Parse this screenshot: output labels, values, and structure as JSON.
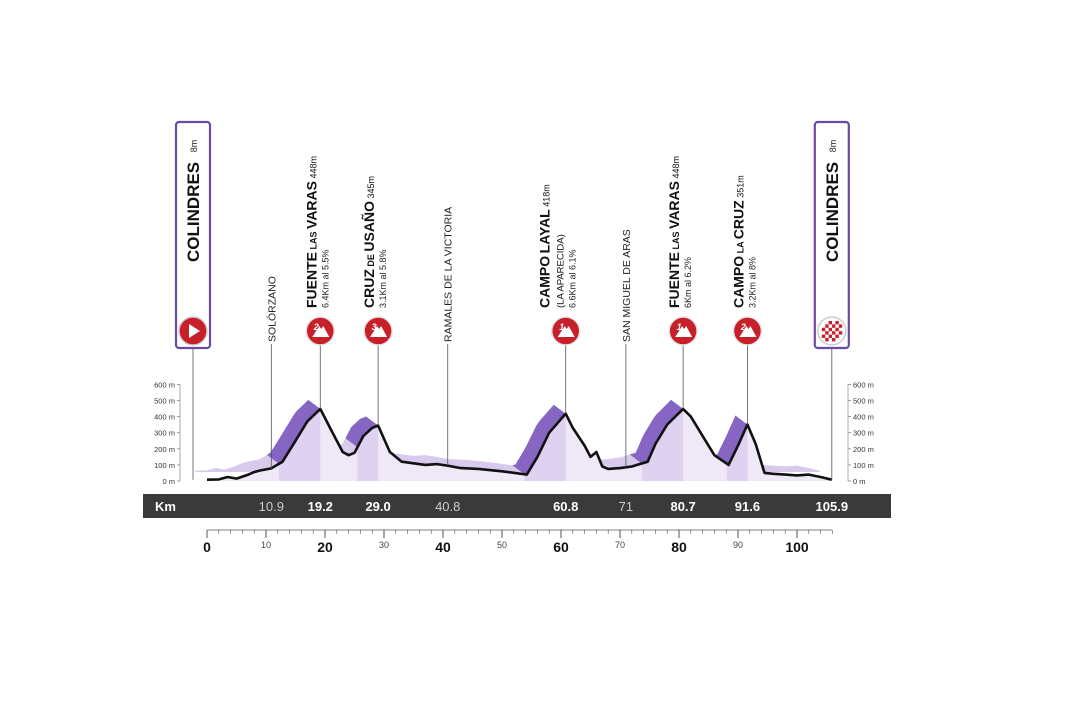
{
  "colors": {
    "accent": "#6a4aa3",
    "fill_light": "#efe8f7",
    "fill_mid": "#c9b8e6",
    "fill_dark": "#8666c2",
    "badge_red": "#c8202a",
    "kmbar": "#3a3a3a",
    "line": "#111111"
  },
  "start": {
    "name": "COLINDRES",
    "alt": "8m",
    "km": 0
  },
  "finish": {
    "name": "COLINDRES",
    "alt": "8m",
    "km": 105.9
  },
  "places": [
    {
      "name": "SOLÓRZANO",
      "km": 10.9
    },
    {
      "name": "RAMALES DE LA VICTORIA",
      "km": 40.8
    },
    {
      "name": "SAN MIGUEL DE ARAS",
      "km": 71
    }
  ],
  "climbs": [
    {
      "big1": "FUENTE",
      "small1": " LAS ",
      "big2": "VARAS",
      "alt": " 448m",
      "sub": "",
      "detail": "6.4Km al 5.5%",
      "cat": "2",
      "km": 19.2
    },
    {
      "big1": "CRUZ",
      "small1": " DE ",
      "big2": "USAÑO",
      "alt": " 345m",
      "sub": "",
      "detail": "3.1Km al 5.8%",
      "cat": "3",
      "km": 29.0
    },
    {
      "big1": "CAMPO",
      "small1": " ",
      "big2": "LAYAL",
      "alt": " 418m",
      "sub": "(LA APARECIDA)",
      "detail": "6.6Km al 6.1%",
      "cat": "1",
      "km": 60.8
    },
    {
      "big1": "FUENTE",
      "small1": " LAS ",
      "big2": "VARAS",
      "alt": " 448m",
      "sub": "",
      "detail": "6Km al 6.2%",
      "cat": "1",
      "km": 80.7
    },
    {
      "big1": "CAMPO",
      "small1": " LA ",
      "big2": "CRUZ",
      "alt": " 351m",
      "sub": "",
      "detail": "3.2Km al 8%",
      "cat": "2",
      "km": 91.6
    }
  ],
  "chart_data": {
    "type": "area",
    "xlabel": "Km",
    "ylim": [
      0,
      600
    ],
    "xlim": [
      0,
      106
    ],
    "y_ticks": [
      "0 m",
      "100 m",
      "200 m",
      "300 m",
      "400 m",
      "500 m",
      "600 m"
    ],
    "x_ticks_major": [
      0,
      20,
      40,
      60,
      80,
      100
    ],
    "x_ticks_minor": [
      10,
      30,
      50,
      70,
      90
    ],
    "km_bar_labels": [
      {
        "text": "10.9",
        "km": 10.9,
        "bold": false
      },
      {
        "text": "19.2",
        "km": 19.2,
        "bold": true
      },
      {
        "text": "29.0",
        "km": 29.0,
        "bold": true
      },
      {
        "text": "40.8",
        "km": 40.8,
        "bold": false
      },
      {
        "text": "60.8",
        "km": 60.8,
        "bold": true
      },
      {
        "text": "71",
        "km": 71,
        "bold": false
      },
      {
        "text": "80.7",
        "km": 80.7,
        "bold": true
      },
      {
        "text": "91.6",
        "km": 91.6,
        "bold": true
      },
      {
        "text": "105.9",
        "km": 105.9,
        "bold": true
      }
    ],
    "x": [
      0,
      2,
      3.5,
      5,
      7,
      8,
      9,
      10.9,
      12.8,
      15,
      17,
      19.2,
      21,
      23,
      24,
      25,
      26.5,
      28,
      29,
      31,
      33,
      35,
      37,
      39,
      40.8,
      43,
      46,
      50,
      54.2,
      56,
      58,
      60.8,
      62,
      64,
      65,
      66,
      67,
      68,
      70,
      71,
      72,
      74.7,
      76,
      78,
      80.7,
      82,
      84,
      86,
      88.4,
      90,
      91.6,
      93,
      94.5,
      96,
      98,
      100,
      102,
      104,
      105.9
    ],
    "elev": [
      8,
      10,
      25,
      15,
      40,
      55,
      65,
      78,
      120,
      250,
      370,
      448,
      320,
      180,
      160,
      175,
      280,
      330,
      345,
      180,
      120,
      110,
      100,
      105,
      95,
      80,
      75,
      60,
      40,
      150,
      300,
      418,
      330,
      220,
      150,
      180,
      90,
      75,
      80,
      85,
      90,
      120,
      230,
      350,
      448,
      400,
      280,
      160,
      100,
      220,
      351,
      230,
      50,
      45,
      40,
      35,
      40,
      25,
      8
    ]
  }
}
